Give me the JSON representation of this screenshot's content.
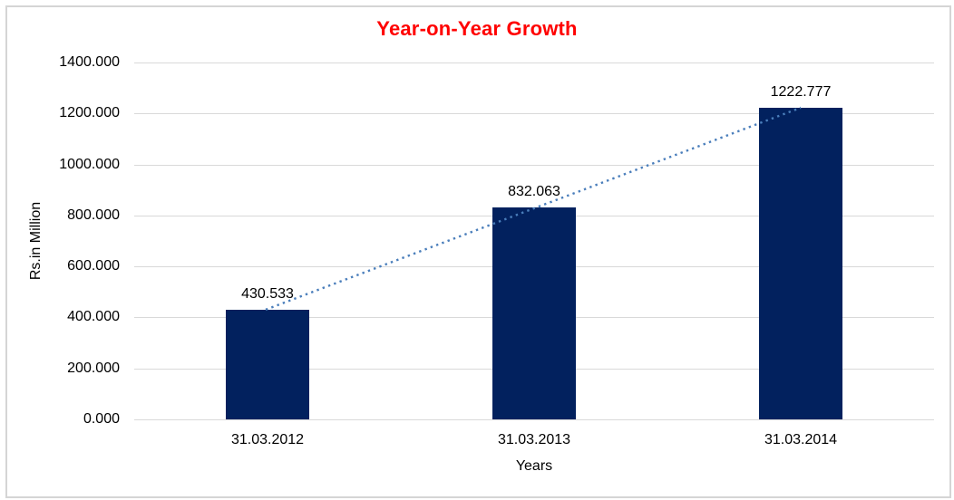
{
  "chart_data": {
    "type": "bar",
    "title": "Year-on-Year Growth",
    "title_color": "#ff0000",
    "xlabel": "Years",
    "ylabel": "Rs.in Million",
    "categories": [
      "31.03.2012",
      "31.03.2013",
      "31.03.2014"
    ],
    "values": [
      430.533,
      832.063,
      1222.777
    ],
    "value_labels": [
      "430.533",
      "832.063",
      "1222.777"
    ],
    "ylim": [
      0,
      1400
    ],
    "ytick_step": 200,
    "ytick_labels": [
      "0.000",
      "200.000",
      "400.000",
      "600.000",
      "800.000",
      "1000.000",
      "1200.000",
      "1400.000"
    ],
    "grid": true,
    "legend": "none",
    "bar_color": "#02215e",
    "gridline_color": "#d9d9d9",
    "axis_line_color": "#d9d9d9",
    "text_color": "#000000",
    "frame_color": "#d5d5d5",
    "trendline": {
      "type": "linear",
      "style": "dotted",
      "color": "#4a7ebb"
    }
  }
}
